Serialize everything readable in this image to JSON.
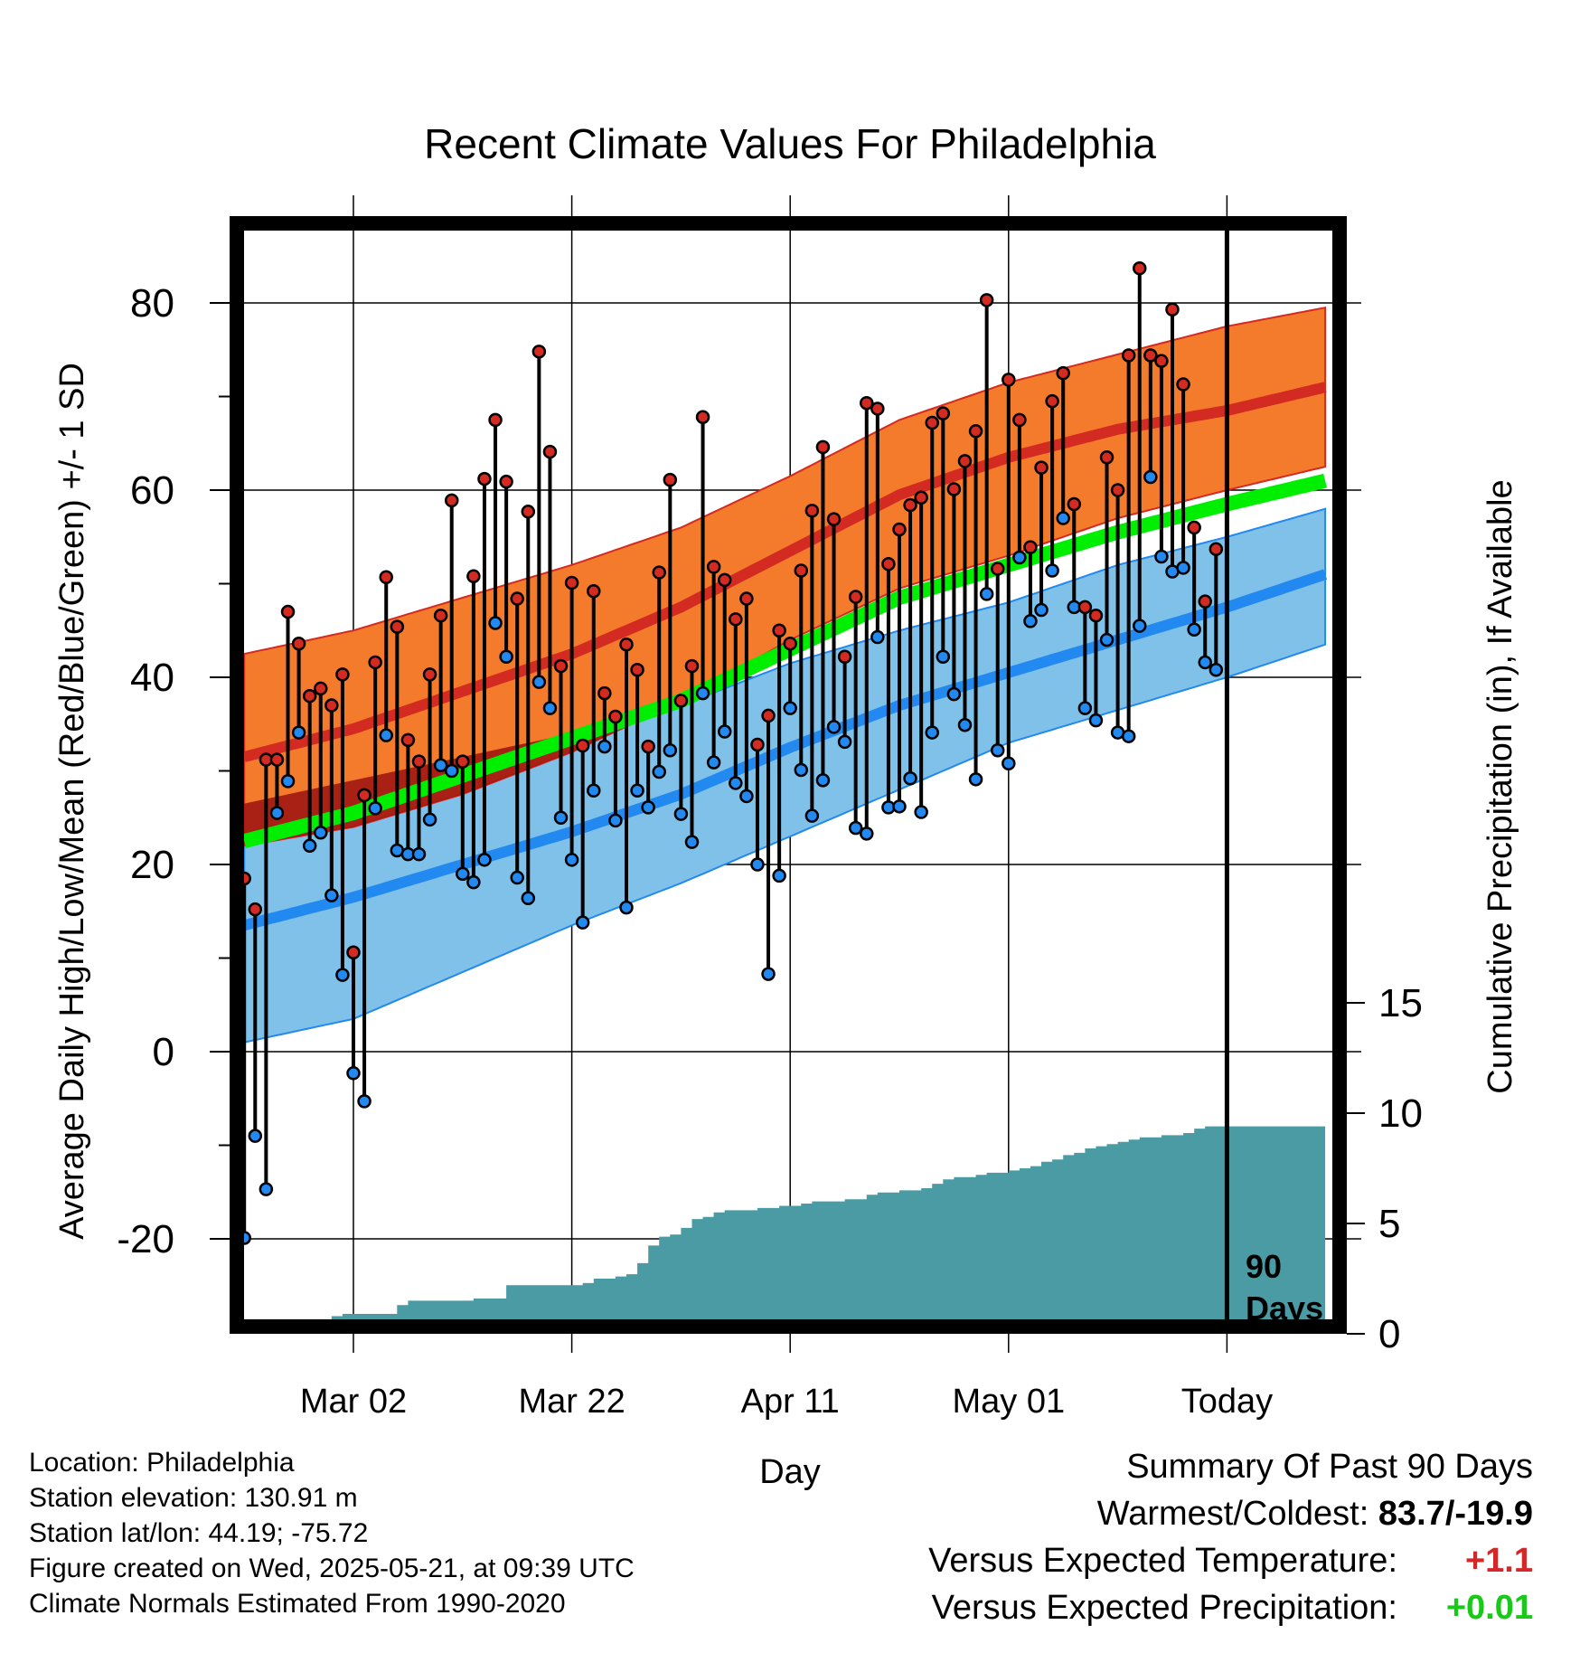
{
  "title": "Recent Climate Values For Philadelphia",
  "ylabel_left": "Average Daily High/Low/Mean (Red/Blue/Green) +/- 1 SD",
  "ylabel_right": "Cumulative Precipitation (in), If Available",
  "xlabel": "Day",
  "today_box_label": [
    "90",
    "Days"
  ],
  "info": {
    "location": "Location: Philadelphia",
    "elevation": "Station elevation: 130.91 m",
    "latlon": "Station lat/lon: 44.19; -75.72",
    "created": "Figure created on Wed, 2025-05-21, at 09:39 UTC",
    "normals": "Climate Normals Estimated From 1990-2020"
  },
  "summary": {
    "heading": "Summary Of Past 90 Days",
    "warm_cold_label": "Warmest/Coldest:",
    "warm_cold_value": "83.7/-19.9",
    "temp_label": "Versus Expected Temperature:",
    "temp_value": "+1.1",
    "precip_label": "Versus Expected Precipitation:",
    "precip_value": "+0.01"
  },
  "colors": {
    "high_band": "#f47a2c",
    "high_line": "#d32a22",
    "overlap": "#9b1010",
    "low_band": "#7fc1e8",
    "low_line": "#2289f0",
    "mean": "#00ee00",
    "precip": "#4a9ba3",
    "high_dot": "#d32a22",
    "low_dot": "#2289f0"
  },
  "chart_data": {
    "type": "line",
    "x_ticks": [
      {
        "day": 11,
        "label": "Mar 02"
      },
      {
        "day": 31,
        "label": "Mar 22"
      },
      {
        "day": 51,
        "label": "Apr 11"
      },
      {
        "day": 71,
        "label": "May 01"
      },
      {
        "day": 91,
        "label": "Today"
      }
    ],
    "y_ticks_left": [
      -20,
      0,
      20,
      40,
      60,
      80
    ],
    "y_ticks_right": [
      0,
      5,
      10,
      15
    ],
    "ylim_left": [
      -29,
      89
    ],
    "ylim_right": [
      0,
      50
    ],
    "today_day": 91,
    "normals": {
      "days": [
        1,
        11,
        21,
        31,
        41,
        51,
        61,
        71,
        81,
        91,
        100
      ],
      "high_mean": [
        31.5,
        34.5,
        38.5,
        42.5,
        47.5,
        53.5,
        59.5,
        63.5,
        66.5,
        68.5,
        71
      ],
      "high_upper": [
        42.5,
        45,
        48.5,
        52,
        56,
        61.5,
        67.5,
        71.5,
        74.5,
        77.5,
        79.5
      ],
      "high_lower": [
        22,
        24,
        27.5,
        32,
        37.5,
        44,
        49.5,
        53,
        57,
        60,
        62.5
      ],
      "low_mean": [
        13.5,
        16.5,
        20,
        23.5,
        27.5,
        32.5,
        37,
        40.5,
        44,
        47.5,
        51
      ],
      "low_upper": [
        26.5,
        29,
        31.5,
        34,
        37,
        41.5,
        45,
        48,
        52,
        55,
        58
      ],
      "low_lower": [
        1,
        3.5,
        8.5,
        13.5,
        18,
        23,
        28,
        33,
        36.5,
        40,
        43.5
      ],
      "mean_mean": [
        22.5,
        25.5,
        29.5,
        33.5,
        37.5,
        43,
        48.5,
        52,
        55.5,
        58.5,
        61
      ]
    },
    "daily": {
      "days": [
        1,
        2,
        3,
        4,
        5,
        6,
        7,
        8,
        9,
        10,
        11,
        12,
        13,
        14,
        15,
        16,
        17,
        18,
        19,
        20,
        21,
        22,
        23,
        24,
        25,
        26,
        27,
        28,
        29,
        30,
        31,
        32,
        33,
        34,
        35,
        36,
        37,
        38,
        39,
        40,
        41,
        42,
        43,
        44,
        45,
        46,
        47,
        48,
        49,
        50,
        51,
        52,
        53,
        54,
        55,
        56,
        57,
        58,
        59,
        60,
        61,
        62,
        63,
        64,
        65,
        66,
        67,
        68,
        69,
        70,
        71,
        72,
        73,
        74,
        75,
        76,
        77,
        78,
        79,
        80,
        81,
        82,
        83,
        84,
        85,
        86,
        87,
        88,
        89,
        90,
        91
      ],
      "high": [
        18.5,
        15.2,
        31.2,
        31.2,
        47,
        43.6,
        38.0,
        38.8,
        37,
        40.3,
        10.6,
        27.4,
        41.6,
        50.7,
        45.4,
        33.3,
        31.0,
        40.3,
        46.6,
        58.9,
        31.0,
        50.8,
        61.2,
        67.5,
        60.9,
        48.4,
        57.7,
        74.8,
        64.1,
        41.2,
        50.1,
        32.7,
        49.2,
        38.3,
        35.8,
        43.5,
        40.8,
        32.6,
        51.2,
        61.1,
        37.5,
        41.2,
        67.8,
        51.8,
        50.4,
        46.2,
        48.4,
        32.8,
        35.9,
        45.0,
        43.6,
        51.4,
        57.8,
        64.6,
        56.9,
        42.2,
        48.6,
        69.3,
        68.7,
        52.1,
        55.8,
        58.4,
        59.2,
        67.2,
        68.2,
        60.1,
        63.1,
        66.3,
        80.3,
        51.6,
        71.8,
        67.5,
        53.9,
        62.4,
        69.5,
        72.5,
        58.5,
        47.5,
        46.6,
        63.5,
        60.0,
        74.4,
        83.7,
        74.4,
        73.8,
        79.3,
        71.3,
        56.0,
        48.1,
        53.7,
        null
      ],
      "low": [
        -19.9,
        -9,
        -14.7,
        25.5,
        28.9,
        34.1,
        22,
        23.4,
        16.7,
        8.2,
        -2.3,
        -5.3,
        26.0,
        33.8,
        21.5,
        21.1,
        21.1,
        24.8,
        30.6,
        30.0,
        19.0,
        18.1,
        20.5,
        45.8,
        42.2,
        18.6,
        16.4,
        39.5,
        36.7,
        25.0,
        20.5,
        13.8,
        27.9,
        32.6,
        24.7,
        15.4,
        27.9,
        26.1,
        29.9,
        32.2,
        25.4,
        22.4,
        38.3,
        30.9,
        34.2,
        28.7,
        27.3,
        20.0,
        8.3,
        18.8,
        36.7,
        30.1,
        25.2,
        29.0,
        34.7,
        33.1,
        23.9,
        23.3,
        44.3,
        26.1,
        26.2,
        29.2,
        25.6,
        34.1,
        42.2,
        38.2,
        34.9,
        29.1,
        48.9,
        32.2,
        30.8,
        52.8,
        46.0,
        47.2,
        51.4,
        57.0,
        47.5,
        36.7,
        35.4,
        44.0,
        34.1,
        33.7,
        45.5,
        61.4,
        52.9,
        51.3,
        51.7,
        45.1,
        41.6,
        40.8,
        null
      ]
    },
    "precip_cumulative": {
      "days": [
        1,
        7,
        8,
        9,
        10,
        14,
        15,
        16,
        21,
        22,
        24,
        25,
        26,
        31,
        32,
        33,
        34,
        35,
        36,
        37,
        38,
        39,
        40,
        41,
        42,
        43,
        44,
        45,
        46,
        47,
        48,
        49,
        50,
        51,
        52,
        53,
        54,
        55,
        56,
        57,
        58,
        59,
        60,
        61,
        62,
        63,
        64,
        65,
        66,
        67,
        68,
        69,
        70,
        71,
        72,
        73,
        74,
        75,
        76,
        77,
        78,
        79,
        80,
        81,
        82,
        83,
        84,
        85,
        86,
        87,
        88,
        89,
        90,
        91,
        100
      ],
      "values": [
        0,
        0,
        0.6,
        0.8,
        0.9,
        0.9,
        1.3,
        1.5,
        1.5,
        1.6,
        1.6,
        2.2,
        2.2,
        2.2,
        2.3,
        2.5,
        2.5,
        2.6,
        2.7,
        3.2,
        4.0,
        4.4,
        4.5,
        4.8,
        5.2,
        5.3,
        5.5,
        5.6,
        5.6,
        5.6,
        5.7,
        5.7,
        5.8,
        5.8,
        5.9,
        6.0,
        6.0,
        6.0,
        6.1,
        6.1,
        6.3,
        6.4,
        6.4,
        6.5,
        6.5,
        6.6,
        6.8,
        7.0,
        7.1,
        7.1,
        7.2,
        7.3,
        7.3,
        7.4,
        7.5,
        7.6,
        7.8,
        7.9,
        8.1,
        8.2,
        8.4,
        8.5,
        8.6,
        8.7,
        8.8,
        8.9,
        8.9,
        9.0,
        9.0,
        9.1,
        9.3,
        9.4,
        9.4,
        9.4,
        9.4
      ]
    }
  }
}
